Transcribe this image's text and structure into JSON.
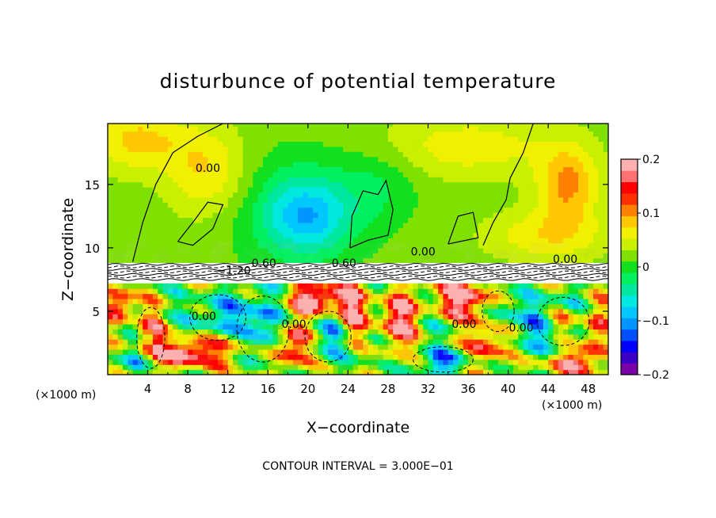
{
  "chart_data": {
    "type": "heatmap",
    "title": "disturbunce of potential temperature",
    "xlabel": "X−coordinate",
    "ylabel": "Z−coordinate",
    "x_unit_left": "(×1000 m)",
    "x_unit_right": "(×1000 m)",
    "xlim": [
      0,
      50
    ],
    "ylim": [
      0,
      19.8
    ],
    "x_ticks": [
      4,
      8,
      12,
      16,
      20,
      24,
      28,
      32,
      36,
      40,
      44,
      48
    ],
    "y_ticks": [
      5,
      10,
      15
    ],
    "colorbar": {
      "range": [
        -0.2,
        0.2
      ],
      "tick_values": [
        0.2,
        0.1,
        0,
        -0.1,
        -0.2
      ],
      "tick_labels": [
        "0.2",
        "0.1",
        "0",
        "−0.1",
        "−0.2"
      ],
      "colors": [
        "#7a00a8",
        "#3a00c8",
        "#0000ff",
        "#0050ff",
        "#0095ff",
        "#00c8ff",
        "#00e8e0",
        "#00e8a0",
        "#00f060",
        "#10e020",
        "#80e000",
        "#c8f000",
        "#f0f000",
        "#ffc800",
        "#ff8000",
        "#ff3000",
        "#ff0000",
        "#ff7070",
        "#ffb0b0"
      ]
    },
    "contour_labels": [
      {
        "text": "0.00",
        "x": 10,
        "z": 16
      },
      {
        "text": "0.00",
        "x": 9.6,
        "z": 4.3
      },
      {
        "text": "0.00",
        "x": 18.6,
        "z": 3.7
      },
      {
        "text": "0.00",
        "x": 31.5,
        "z": 9.4
      },
      {
        "text": "0.00",
        "x": 35.6,
        "z": 3.7
      },
      {
        "text": "0.00",
        "x": 41.3,
        "z": 3.4
      },
      {
        "text": "0.00",
        "x": 45.7,
        "z": 8.8
      },
      {
        "text": "−1.20",
        "x": 12.6,
        "z": 7.9
      },
      {
        "text": "0.60",
        "x": 23.6,
        "z": 8.5
      },
      {
        "text": "0.60",
        "x": 15.6,
        "z": 8.5
      }
    ],
    "footnote": "CONTOUR INTERVAL = 3.000E−01",
    "grid": false
  }
}
